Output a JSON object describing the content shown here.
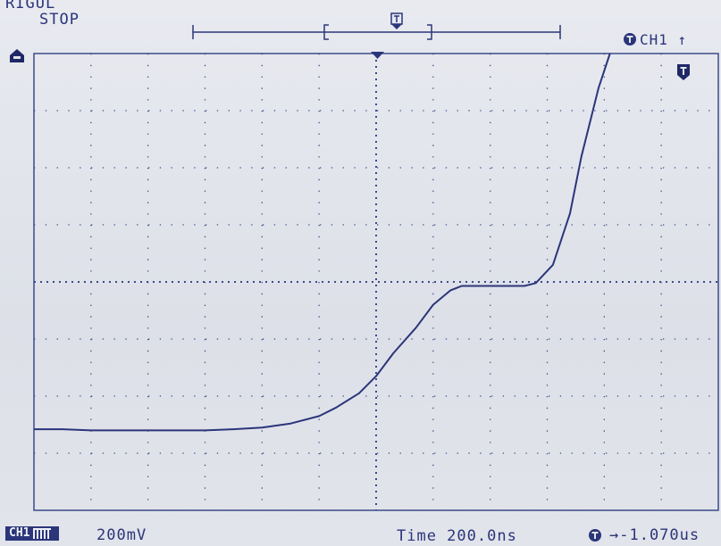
{
  "header": {
    "brand": "RIGUL",
    "run_status": "STOP",
    "trigger_channel": "CH1 ↑"
  },
  "footer": {
    "channel_badge": "CH1",
    "volts_per_div": "200mV",
    "timebase": "Time 200.0ns",
    "trigger_offset": "→-1.070us"
  },
  "colors": {
    "trace": "#2b357a",
    "background": "#e2e4eb",
    "grid": "#3b4a8a"
  },
  "icons": [
    "ground-marker-icon",
    "trigger-marker-icon",
    "trigger-channel-icon",
    "trigger-offset-icon"
  ],
  "chart_data": {
    "type": "line",
    "title": "",
    "xlabel": "",
    "ylabel": "",
    "grid": true,
    "x_divisions": 12,
    "y_divisions": 8,
    "xlim": [
      0,
      12
    ],
    "ylim": [
      0,
      8
    ],
    "series": [
      {
        "x": [
          0,
          0.5,
          1,
          1.5,
          2,
          2.5,
          3,
          3.5,
          4,
          4.5,
          5,
          5.3,
          5.7,
          6,
          6.3,
          6.7,
          7,
          7.3,
          7.5,
          7.8,
          8.2,
          8.6,
          8.8,
          9.1,
          9.4,
          9.6,
          9.9,
          10.1
        ],
        "y": [
          1.42,
          1.42,
          1.4,
          1.4,
          1.4,
          1.4,
          1.4,
          1.42,
          1.45,
          1.52,
          1.65,
          1.8,
          2.05,
          2.35,
          2.75,
          3.2,
          3.6,
          3.85,
          3.93,
          3.93,
          3.93,
          3.93,
          3.98,
          4.3,
          5.2,
          6.2,
          7.4,
          8.0
        ]
      }
    ]
  }
}
